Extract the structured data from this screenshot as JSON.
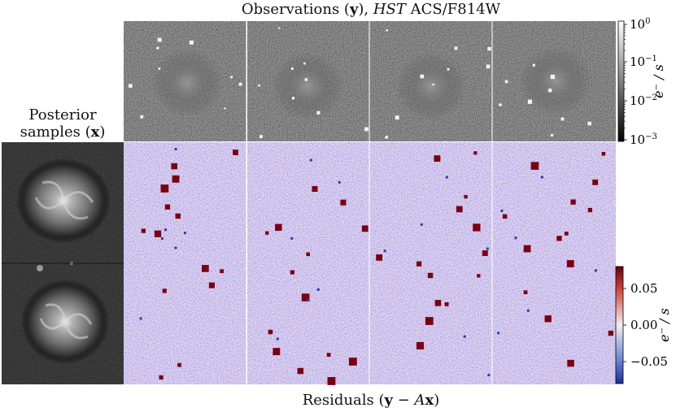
{
  "top_title": {
    "prefix": "Observations (",
    "var": "y",
    "mid": "), ",
    "telescope": "HST",
    "suffix": " ACS/F814W"
  },
  "left_title": {
    "line1": "Posterior",
    "line2_prefix": "samples (",
    "var": "x",
    "suffix": ")"
  },
  "bottom_title": {
    "prefix": "Residuals (",
    "var1": "y",
    "op": " − ",
    "mat": "A",
    "var2": "x",
    "suffix": ")"
  },
  "colorbar_observations": {
    "label": "e⁻ / s",
    "scale": "log",
    "colormap": "gray",
    "range": [
      0.001,
      1
    ],
    "ticks": [
      "10^0",
      "10^-1",
      "10^-2",
      "10^-3"
    ]
  },
  "colorbar_residuals": {
    "label": "e⁻ / s",
    "scale": "linear",
    "colormap": "coolwarm-red-blue",
    "range": [
      -0.08,
      0.08
    ],
    "ticks": [
      "0.05",
      "0.00",
      "−0.05"
    ]
  },
  "colors": {
    "residual_pos": "#7a0010",
    "residual_neg": "#2a3cb0",
    "residual_mid": "#e4e4ea"
  }
}
